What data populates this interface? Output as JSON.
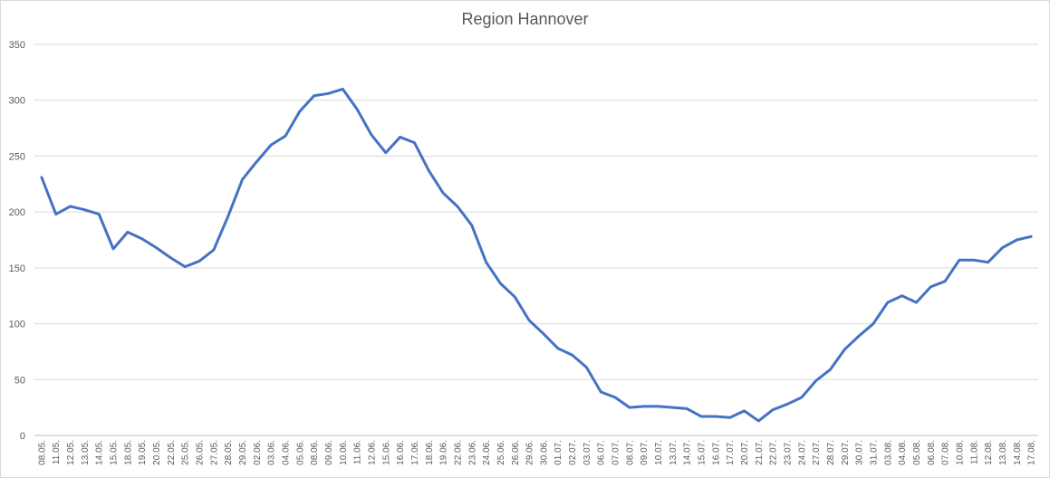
{
  "chart_data": {
    "type": "line",
    "title": "Region Hannover",
    "xlabel": "",
    "ylabel": "",
    "ylim": [
      0,
      350
    ],
    "yticks": [
      0,
      50,
      100,
      150,
      200,
      250,
      300,
      350
    ],
    "grid": true,
    "legend": "none",
    "line_color": "#4472c4",
    "categories": [
      "08.05.",
      "11.05.",
      "12.05.",
      "13.05.",
      "14.05.",
      "15.05.",
      "18.05.",
      "19.05.",
      "20.05.",
      "22.05.",
      "25.05.",
      "26.05.",
      "27.05.",
      "28.05.",
      "29.05.",
      "02.06.",
      "03.06.",
      "04.06.",
      "05.06.",
      "08.06.",
      "09.06.",
      "10.06.",
      "11.06.",
      "12.06.",
      "15.06.",
      "16.06.",
      "17.06.",
      "18.06.",
      "19.06.",
      "22.06.",
      "23.06.",
      "24.06.",
      "25.06.",
      "26.06.",
      "29.06.",
      "30.06.",
      "01.07.",
      "02.07.",
      "03.07.",
      "06.07.",
      "07.07.",
      "08.07.",
      "09.07.",
      "10.07.",
      "13.07.",
      "14.07.",
      "15.07.",
      "16.07.",
      "17.07.",
      "20.07.",
      "21.07.",
      "22.07.",
      "23.07.",
      "24.07.",
      "27.07.",
      "28.07.",
      "29.07.",
      "30.07.",
      "31.07.",
      "03.08.",
      "04.08.",
      "05.08.",
      "06.08.",
      "07.08.",
      "10.08.",
      "11.08.",
      "12.08.",
      "13.08.",
      "14.08.",
      "17.08."
    ],
    "values": [
      231,
      198,
      205,
      202,
      198,
      167,
      182,
      176,
      168,
      159,
      151,
      156,
      166,
      196,
      229,
      245,
      260,
      268,
      290,
      304,
      306,
      310,
      292,
      269,
      253,
      267,
      262,
      237,
      217,
      205,
      188,
      155,
      136,
      124,
      103,
      91,
      78,
      72,
      61,
      39,
      34,
      25,
      26,
      26,
      25,
      24,
      17,
      17,
      16,
      22,
      13,
      23,
      28,
      34,
      49,
      59,
      77,
      89,
      100,
      119,
      125,
      119,
      133,
      138,
      157,
      157,
      155,
      168,
      175,
      178
    ]
  }
}
